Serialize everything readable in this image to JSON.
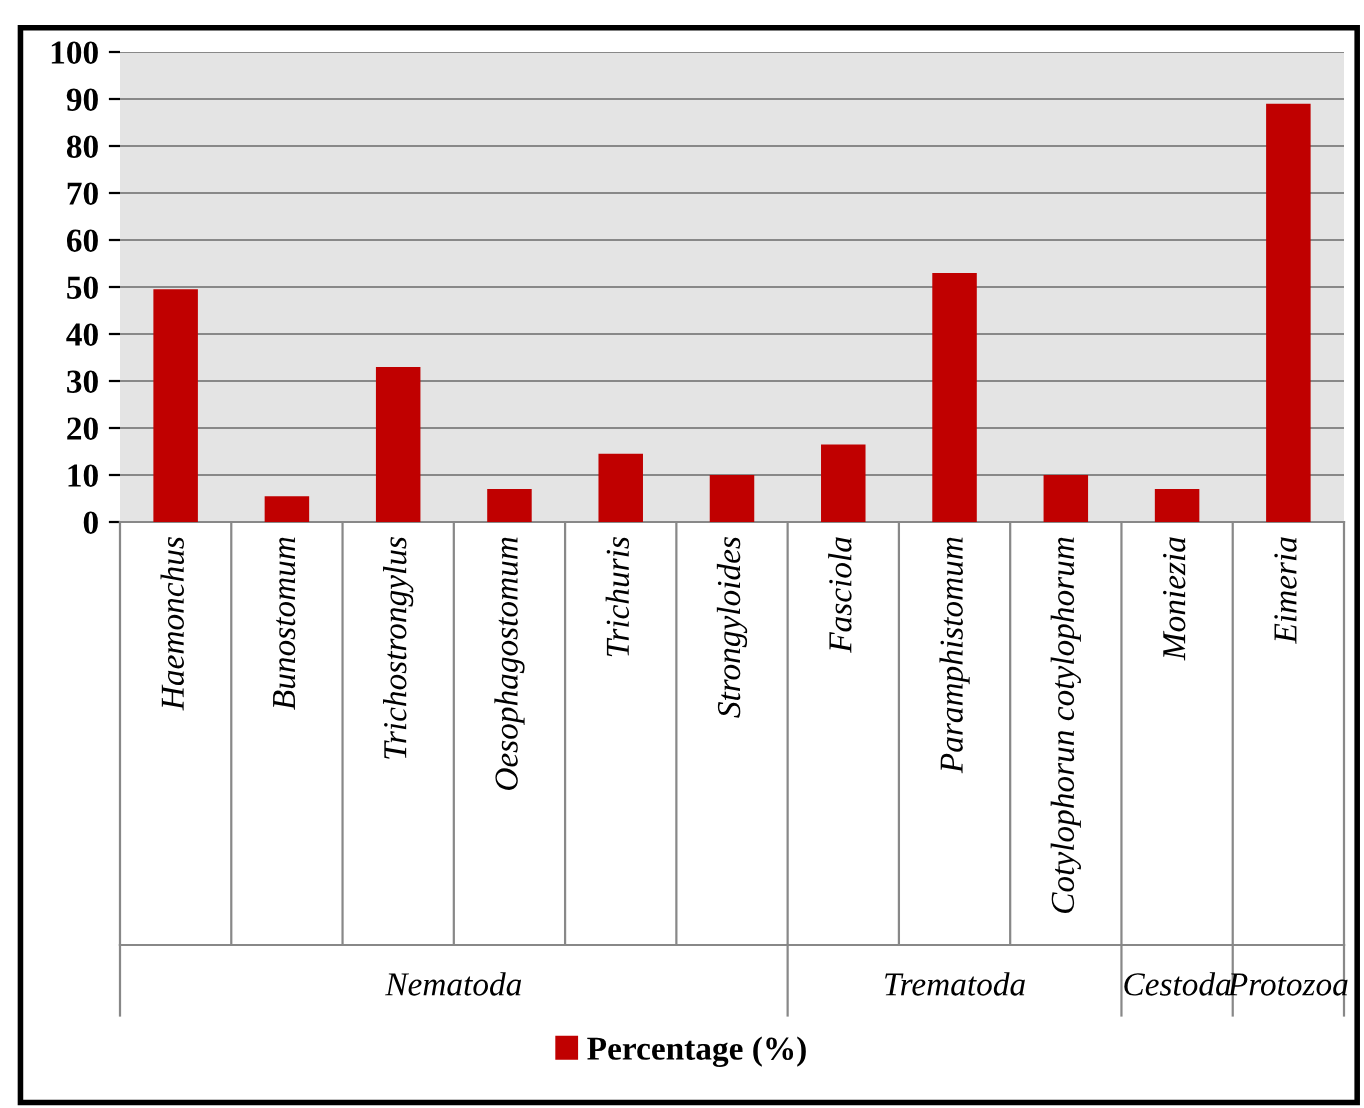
{
  "chart_data": {
    "type": "bar",
    "categories": [
      "Haemonchus",
      "Bunostomum",
      "Trichostrongylus",
      "Oesophagostomum",
      "Trichuris",
      "Strongyloides",
      "Fasciola",
      "Paramphistomum",
      "Cotylophorun cotylophorum",
      "Moniezia",
      "Eimeria"
    ],
    "series": [
      {
        "name": "Percentage (%)",
        "color": "#c00000",
        "values": [
          49.5,
          5.5,
          33,
          7,
          14.5,
          10,
          16.5,
          53,
          10,
          7,
          89
        ]
      }
    ],
    "ylim": [
      0,
      100
    ],
    "yticks": [
      0,
      10,
      20,
      30,
      40,
      50,
      60,
      70,
      80,
      90,
      100
    ],
    "grid": "y",
    "legend": "bottom",
    "annotations": [
      "Nematoda",
      "Trematoda",
      "Cestoda",
      "Protozoa"
    ]
  }
}
